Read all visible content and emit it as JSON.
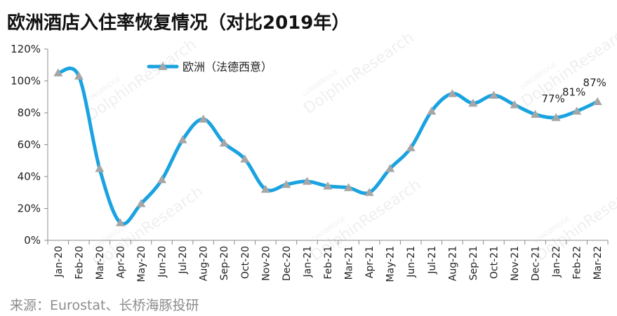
{
  "title": "欧洲酒店入住率恢复情况（对比2019年）",
  "source": "来源：Eurostat、长桥海豚投研",
  "watermark": {
    "brand": "LONGBRIDGE",
    "name": "DolphinResearch"
  },
  "chart_data": {
    "type": "line",
    "categories": [
      "Jan-20",
      "Feb-20",
      "Mar-20",
      "Apr-20",
      "May-20",
      "Jun-20",
      "Jul-20",
      "Aug-20",
      "Sep-20",
      "Oct-20",
      "Nov-20",
      "Dec-20",
      "Jan-21",
      "Feb-21",
      "Mar-21",
      "Apr-21",
      "May-21",
      "Jun-21",
      "Jul-21",
      "Aug-21",
      "Sep-21",
      "Oct-21",
      "Nov-21",
      "Dec-21",
      "Jan-22",
      "Feb-22",
      "Mar-22"
    ],
    "series": [
      {
        "name": "欧洲（法德西意）",
        "color": "#1aa3e0",
        "marker_color": "#a6a6a6",
        "values": [
          1.05,
          1.03,
          0.45,
          0.11,
          0.23,
          0.38,
          0.63,
          0.76,
          0.61,
          0.51,
          0.32,
          0.35,
          0.37,
          0.34,
          0.33,
          0.3,
          0.45,
          0.58,
          0.81,
          0.92,
          0.86,
          0.91,
          0.85,
          0.79,
          0.77,
          0.81,
          0.87
        ]
      }
    ],
    "y_ticks": [
      "0%",
      "20%",
      "40%",
      "60%",
      "80%",
      "100%",
      "120%"
    ],
    "ylim": [
      0,
      1.2
    ],
    "legend_position": "top-left",
    "data_labels": [
      {
        "index": 24,
        "text": "77%"
      },
      {
        "index": 25,
        "text": "81%"
      },
      {
        "index": 26,
        "text": "87%"
      }
    ],
    "grid": false
  }
}
